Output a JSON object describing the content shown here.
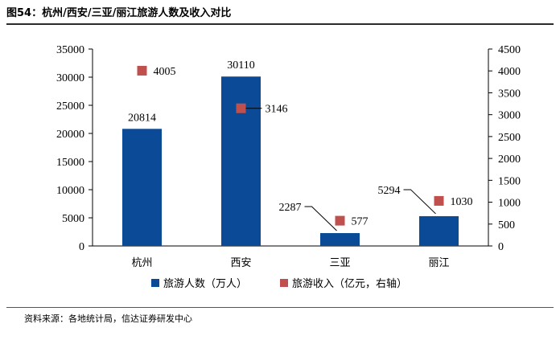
{
  "title": "图54：杭州/西安/三亚/丽江旅游人数及收入对比",
  "source": "资料来源：各地统计局，信达证券研发中心",
  "chart_data": {
    "type": "bar",
    "categories": [
      "杭州",
      "西安",
      "三亚",
      "丽江"
    ],
    "series": [
      {
        "name": "旅游人数（万人）",
        "type": "bar",
        "axis": "left",
        "color": "#0a4a96",
        "values": [
          20814,
          30110,
          2287,
          5294
        ]
      },
      {
        "name": "旅游收入（亿元，右轴）",
        "type": "scatter",
        "axis": "right",
        "color": "#c0504d",
        "values": [
          4005,
          3146,
          577,
          1030
        ]
      }
    ],
    "ylim": [
      0,
      35000
    ],
    "yticks": [
      0,
      5000,
      10000,
      15000,
      20000,
      25000,
      30000,
      35000
    ],
    "y2lim": [
      0,
      4500
    ],
    "y2ticks": [
      0,
      500,
      1000,
      1500,
      2000,
      2500,
      3000,
      3500,
      4000,
      4500
    ],
    "legend_position": "bottom"
  }
}
